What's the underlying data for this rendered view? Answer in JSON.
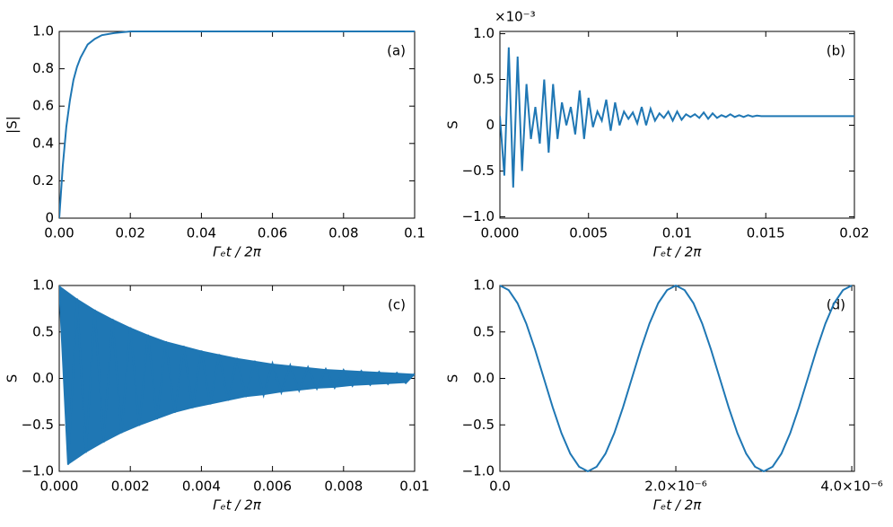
{
  "chart_data": [
    {
      "type": "line",
      "annotation": "(a)",
      "ylabel": "|S|",
      "xlabel": "Γₑt / 2π",
      "xlim": [
        0,
        0.1
      ],
      "xticks": [
        {
          "value": 0,
          "label": "0.00"
        },
        0.02,
        0.04,
        0.06,
        0.08,
        0.1
      ],
      "ylim": [
        0,
        1
      ],
      "yticks": [
        0,
        0.2,
        0.4,
        0.6,
        0.8,
        {
          "value": 1,
          "label": "1.0"
        }
      ],
      "series": [
        {
          "color": "#1f77b4",
          "x": [
            0,
            0.001,
            0.002,
            0.003,
            0.004,
            0.005,
            0.006,
            0.008,
            0.01,
            0.012,
            0.015,
            0.02,
            0.04,
            0.06,
            0.08,
            0.1
          ],
          "values": [
            0,
            0.28,
            0.49,
            0.63,
            0.74,
            0.81,
            0.86,
            0.93,
            0.96,
            0.98,
            0.99,
            1,
            1,
            1,
            1,
            1
          ]
        }
      ]
    },
    {
      "type": "line",
      "annotation": "(b)",
      "ylabel": "S",
      "xlabel": "Γₑt / 2π",
      "offset_text": "×10⁻³",
      "xlim": [
        0,
        0.02
      ],
      "xticks": [
        {
          "value": 0,
          "label": "0.000"
        },
        0.005,
        0.01,
        0.015,
        0.02
      ],
      "ylim": [
        -1.015,
        1.025
      ],
      "yticks": [
        {
          "value": -1,
          "label": "−1.0"
        },
        {
          "value": -0.5,
          "label": "−0.5"
        },
        0,
        0.5,
        {
          "value": 1,
          "label": "1.0"
        }
      ],
      "series": [
        {
          "color": "#1f77b4",
          "x": [
            0,
            0.00025,
            0.0005,
            0.00075,
            0.001,
            0.00125,
            0.0015,
            0.00175,
            0.002,
            0.00225,
            0.0025,
            0.00275,
            0.003,
            0.00325,
            0.0035,
            0.00375,
            0.004,
            0.00425,
            0.0045,
            0.00475,
            0.005,
            0.00525,
            0.0055,
            0.00575,
            0.006,
            0.00625,
            0.0065,
            0.00675,
            0.007,
            0.00725,
            0.0075,
            0.00775,
            0.008,
            0.00825,
            0.0085,
            0.00875,
            0.009,
            0.00925,
            0.0095,
            0.00975,
            0.01,
            0.01025,
            0.0105,
            0.01075,
            0.011,
            0.01125,
            0.0115,
            0.01175,
            0.012,
            0.01225,
            0.0125,
            0.01275,
            0.013,
            0.01325,
            0.0135,
            0.01375,
            0.014,
            0.01425,
            0.0145,
            0.01475,
            0.015,
            0.02
          ],
          "values": [
            0.1,
            -0.55,
            0.85,
            -0.68,
            0.75,
            -0.5,
            0.45,
            -0.15,
            0.2,
            -0.2,
            0.5,
            -0.3,
            0.45,
            -0.15,
            0.25,
            0,
            0.2,
            -0.1,
            0.38,
            -0.15,
            0.3,
            -0.02,
            0.15,
            0.05,
            0.28,
            -0.06,
            0.25,
            0,
            0.15,
            0.07,
            0.14,
            0.02,
            0.2,
            0,
            0.18,
            0.05,
            0.13,
            0.08,
            0.15,
            0.05,
            0.15,
            0.06,
            0.12,
            0.09,
            0.12,
            0.08,
            0.14,
            0.07,
            0.13,
            0.08,
            0.11,
            0.09,
            0.12,
            0.09,
            0.11,
            0.09,
            0.11,
            0.095,
            0.105,
            0.1,
            0.1,
            0.1
          ]
        }
      ]
    },
    {
      "type": "line",
      "annotation": "(c)",
      "ylabel": "S",
      "xlabel": "Γₑt / 2π",
      "xlim": [
        0,
        0.01
      ],
      "xticks": [
        {
          "value": 0,
          "label": "0.000"
        },
        0.002,
        0.004,
        0.006,
        0.008,
        0.01
      ],
      "ylim": [
        -1,
        1
      ],
      "yticks": [
        {
          "value": -1,
          "label": "−1.0"
        },
        {
          "value": -0.5,
          "label": "−0.5"
        },
        {
          "value": 0,
          "label": "0.0"
        },
        0.5,
        {
          "value": 1,
          "label": "1.0"
        }
      ],
      "series": [
        {
          "color": "#1f77b4",
          "fill": true,
          "x": [
            0,
            0.00025,
            0.0005,
            0.00075,
            0.001,
            0.00125,
            0.0015,
            0.00175,
            0.002,
            0.00225,
            0.0025,
            0.00275,
            0.003,
            0.00325,
            0.0035,
            0.00375,
            0.004,
            0.00425,
            0.0045,
            0.00475,
            0.005,
            0.00525,
            0.0055,
            0.00575,
            0.006,
            0.00625,
            0.0065,
            0.00675,
            0.007,
            0.00725,
            0.0075,
            0.00775,
            0.008,
            0.00825,
            0.0085,
            0.00875,
            0.009,
            0.00925,
            0.0095,
            0.00975,
            0.01
          ],
          "values": [
            1,
            -0.93,
            0.86,
            -0.8,
            0.74,
            -0.69,
            0.64,
            -0.59,
            0.55,
            -0.51,
            0.47,
            -0.44,
            0.4,
            -0.37,
            0.35,
            -0.32,
            0.3,
            -0.28,
            0.26,
            -0.24,
            0.22,
            -0.2,
            0.19,
            -0.18,
            0.16,
            -0.15,
            0.14,
            -0.13,
            0.12,
            -0.11,
            0.1,
            -0.1,
            0.09,
            -0.08,
            0.08,
            -0.07,
            0.07,
            -0.06,
            0.06,
            -0.05,
            0.05
          ]
        }
      ]
    },
    {
      "type": "line",
      "annotation": "(d)",
      "ylabel": "S",
      "xlabel": "Γₑt / 2π",
      "xlim": [
        0,
        4.03e-06
      ],
      "xticks": [
        {
          "value": 0,
          "label": "0.0"
        },
        {
          "value": 2e-06,
          "label": "2.0×10⁻⁶"
        },
        {
          "value": 4e-06,
          "label": "4.0×10⁻⁶"
        }
      ],
      "ylim": [
        -1,
        1
      ],
      "yticks": [
        {
          "value": -1,
          "label": "−1.0"
        },
        {
          "value": -0.5,
          "label": "−0.5"
        },
        {
          "value": 0,
          "label": "0.0"
        },
        0.5,
        {
          "value": 1,
          "label": "1.0"
        }
      ],
      "series": [
        {
          "color": "#1f77b4",
          "x": [
            0,
            1e-07,
            2e-07,
            3e-07,
            4e-07,
            5e-07,
            6e-07,
            7e-07,
            8e-07,
            9e-07,
            1e-06,
            1.1e-06,
            1.2e-06,
            1.3e-06,
            1.4e-06,
            1.5e-06,
            1.6e-06,
            1.7e-06,
            1.8e-06,
            1.9e-06,
            2e-06,
            2.1e-06,
            2.2e-06,
            2.3e-06,
            2.4e-06,
            2.5e-06,
            2.6e-06,
            2.7e-06,
            2.8e-06,
            2.9e-06,
            3e-06,
            3.1e-06,
            3.2e-06,
            3.3e-06,
            3.4e-06,
            3.5e-06,
            3.6e-06,
            3.7e-06,
            3.8e-06,
            3.9e-06,
            4e-06
          ],
          "values": [
            1,
            0.95,
            0.81,
            0.59,
            0.31,
            0,
            -0.31,
            -0.59,
            -0.81,
            -0.95,
            -1,
            -0.95,
            -0.81,
            -0.59,
            -0.31,
            0,
            0.31,
            0.59,
            0.81,
            0.95,
            1,
            0.95,
            0.81,
            0.59,
            0.31,
            0,
            -0.31,
            -0.59,
            -0.81,
            -0.95,
            -1,
            -0.95,
            -0.81,
            -0.59,
            -0.31,
            0,
            0.31,
            0.59,
            0.81,
            0.95,
            1
          ]
        }
      ]
    }
  ]
}
